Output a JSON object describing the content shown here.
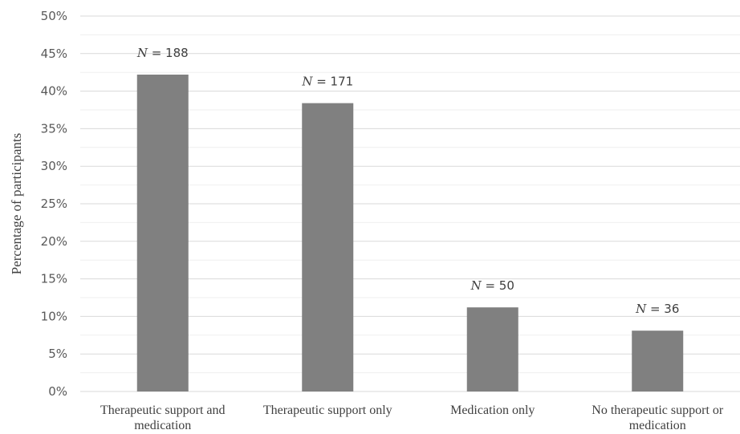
{
  "chart_data": {
    "type": "bar",
    "title": "",
    "xlabel": "",
    "ylabel": "Percentage of participants",
    "ylim": [
      0,
      50
    ],
    "y_ticks": [
      "0%",
      "5%",
      "10%",
      "15%",
      "20%",
      "25%",
      "30%",
      "35%",
      "40%",
      "45%",
      "50%"
    ],
    "grid": true,
    "bar_color": "#808080",
    "categories": [
      [
        "Therapeutic support and",
        "medication"
      ],
      [
        "Therapeutic support only"
      ],
      [
        "Medication only"
      ],
      [
        "No therapeutic support or",
        "medication"
      ]
    ],
    "values": [
      42.2,
      38.4,
      11.2,
      8.1
    ],
    "data_labels": [
      {
        "n_symbol": "N",
        "rest": " = 188"
      },
      {
        "n_symbol": "N",
        "rest": " = 171"
      },
      {
        "n_symbol": "N",
        "rest": " = 50"
      },
      {
        "n_symbol": "N",
        "rest": " = 36"
      }
    ]
  }
}
